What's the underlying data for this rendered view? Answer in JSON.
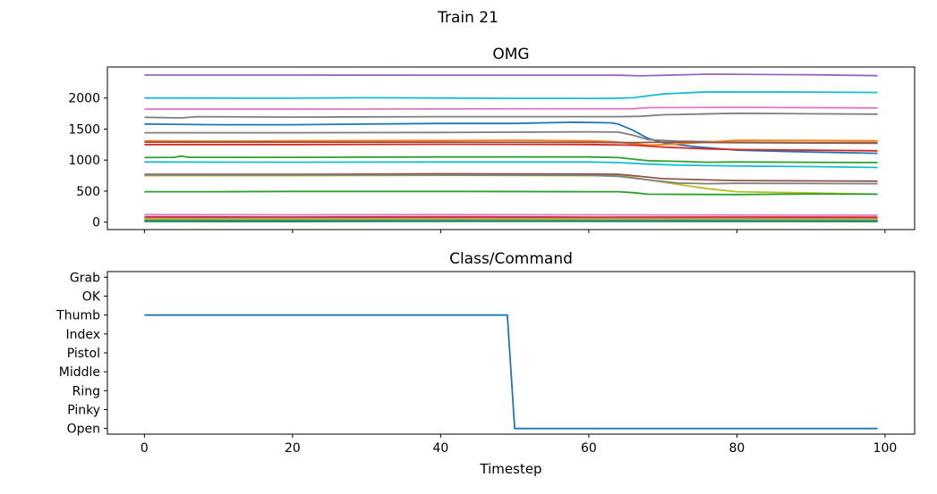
{
  "figure": {
    "title": "Train 21"
  },
  "chart_data": [
    {
      "type": "line",
      "title": "OMG",
      "xlabel": "",
      "ylabel": "",
      "xlim": [
        -5,
        104
      ],
      "ylim": [
        -120,
        2500
      ],
      "xticks": [
        0,
        20,
        40,
        60,
        80,
        100
      ],
      "xticklabels_visible": false,
      "yticks": [
        0,
        500,
        1000,
        1500,
        2000
      ],
      "grid": false,
      "legend": "none",
      "series": [
        {
          "color": "#9467bd",
          "values": [
            [
              0,
              2370
            ],
            [
              20,
              2370
            ],
            [
              40,
              2368
            ],
            [
              64,
              2368
            ],
            [
              67,
              2358
            ],
            [
              76,
              2385
            ],
            [
              90,
              2375
            ],
            [
              99,
              2360
            ]
          ]
        },
        {
          "color": "#17becf",
          "values": [
            [
              0,
              2000
            ],
            [
              20,
              1998
            ],
            [
              30,
              2005
            ],
            [
              50,
              1995
            ],
            [
              63,
              1993
            ],
            [
              66,
              2005
            ],
            [
              70,
              2065
            ],
            [
              76,
              2100
            ],
            [
              90,
              2095
            ],
            [
              99,
              2090
            ]
          ]
        },
        {
          "color": "#e377c2",
          "values": [
            [
              0,
              1820
            ],
            [
              20,
              1820
            ],
            [
              40,
              1825
            ],
            [
              66,
              1828
            ],
            [
              68,
              1845
            ],
            [
              80,
              1850
            ],
            [
              99,
              1840
            ]
          ]
        },
        {
          "color": "#7f7f7f",
          "values": [
            [
              0,
              1690
            ],
            [
              5,
              1680
            ],
            [
              7,
              1700
            ],
            [
              20,
              1692
            ],
            [
              40,
              1700
            ],
            [
              64,
              1700
            ],
            [
              67,
              1705
            ],
            [
              70,
              1730
            ],
            [
              80,
              1755
            ],
            [
              90,
              1745
            ],
            [
              99,
              1740
            ]
          ]
        },
        {
          "color": "#1f77b4",
          "values": [
            [
              0,
              1580
            ],
            [
              10,
              1570
            ],
            [
              20,
              1570
            ],
            [
              30,
              1580
            ],
            [
              40,
              1590
            ],
            [
              50,
              1590
            ],
            [
              58,
              1610
            ],
            [
              63,
              1600
            ],
            [
              64,
              1580
            ],
            [
              66,
              1480
            ],
            [
              68,
              1350
            ],
            [
              70,
              1280
            ],
            [
              74,
              1220
            ],
            [
              80,
              1160
            ],
            [
              90,
              1130
            ],
            [
              99,
              1110
            ]
          ]
        },
        {
          "color": "#7f7f7f",
          "values": [
            [
              0,
              1440
            ],
            [
              20,
              1440
            ],
            [
              40,
              1445
            ],
            [
              60,
              1455
            ],
            [
              64,
              1450
            ],
            [
              66,
              1400
            ],
            [
              68,
              1330
            ],
            [
              72,
              1305
            ],
            [
              80,
              1290
            ],
            [
              90,
              1280
            ],
            [
              99,
              1280
            ]
          ]
        },
        {
          "color": "#ff7f0e",
          "values": [
            [
              0,
              1310
            ],
            [
              10,
              1305
            ],
            [
              20,
              1310
            ],
            [
              40,
              1315
            ],
            [
              50,
              1320
            ],
            [
              60,
              1310
            ],
            [
              63,
              1300
            ],
            [
              66,
              1265
            ],
            [
              68,
              1240
            ],
            [
              72,
              1260
            ],
            [
              76,
              1290
            ],
            [
              80,
              1320
            ],
            [
              90,
              1315
            ],
            [
              99,
              1310
            ]
          ]
        },
        {
          "color": "#8c564b",
          "values": [
            [
              0,
              1290
            ],
            [
              40,
              1290
            ],
            [
              60,
              1285
            ],
            [
              66,
              1280
            ],
            [
              70,
              1290
            ],
            [
              80,
              1280
            ],
            [
              99,
              1270
            ]
          ]
        },
        {
          "color": "#d62728",
          "values": [
            [
              0,
              1250
            ],
            [
              20,
              1250
            ],
            [
              40,
              1255
            ],
            [
              60,
              1250
            ],
            [
              66,
              1240
            ],
            [
              70,
              1210
            ],
            [
              76,
              1180
            ],
            [
              80,
              1170
            ],
            [
              90,
              1160
            ],
            [
              99,
              1150
            ]
          ]
        },
        {
          "color": "#2ca02c",
          "values": [
            [
              0,
              1040
            ],
            [
              4,
              1045
            ],
            [
              5,
              1065
            ],
            [
              6,
              1045
            ],
            [
              20,
              1045
            ],
            [
              40,
              1050
            ],
            [
              60,
              1050
            ],
            [
              64,
              1040
            ],
            [
              68,
              990
            ],
            [
              72,
              980
            ],
            [
              76,
              965
            ],
            [
              80,
              970
            ],
            [
              99,
              960
            ]
          ]
        },
        {
          "color": "#17becf",
          "values": [
            [
              0,
              970
            ],
            [
              20,
              965
            ],
            [
              40,
              970
            ],
            [
              60,
              970
            ],
            [
              64,
              960
            ],
            [
              68,
              935
            ],
            [
              72,
              920
            ],
            [
              80,
              905
            ],
            [
              90,
              895
            ],
            [
              99,
              880
            ]
          ]
        },
        {
          "color": "#8c564b",
          "values": [
            [
              0,
              770
            ],
            [
              20,
              770
            ],
            [
              40,
              780
            ],
            [
              60,
              775
            ],
            [
              64,
              770
            ],
            [
              66,
              750
            ],
            [
              70,
              700
            ],
            [
              76,
              680
            ],
            [
              80,
              670
            ],
            [
              90,
              665
            ],
            [
              99,
              660
            ]
          ]
        },
        {
          "color": "#bcbd22",
          "values": [
            [
              0,
              750
            ],
            [
              20,
              750
            ],
            [
              40,
              755
            ],
            [
              60,
              750
            ],
            [
              64,
              745
            ],
            [
              66,
              720
            ],
            [
              68,
              680
            ],
            [
              72,
              610
            ],
            [
              76,
              540
            ],
            [
              80,
              490
            ],
            [
              90,
              470
            ],
            [
              99,
              450
            ]
          ]
        },
        {
          "color": "#7f7f7f",
          "values": [
            [
              0,
              760
            ],
            [
              40,
              760
            ],
            [
              60,
              755
            ],
            [
              64,
              740
            ],
            [
              68,
              680
            ],
            [
              72,
              630
            ],
            [
              76,
              620
            ],
            [
              80,
              625
            ],
            [
              99,
              620
            ]
          ]
        },
        {
          "color": "#2ca02c",
          "values": [
            [
              0,
              490
            ],
            [
              10,
              490
            ],
            [
              20,
              495
            ],
            [
              40,
              495
            ],
            [
              60,
              490
            ],
            [
              64,
              490
            ],
            [
              66,
              475
            ],
            [
              68,
              450
            ],
            [
              80,
              445
            ],
            [
              90,
              455
            ],
            [
              99,
              450
            ]
          ]
        },
        {
          "color": "#e377c2",
          "values": [
            [
              0,
              120
            ],
            [
              20,
              118
            ],
            [
              40,
              120
            ],
            [
              60,
              118
            ],
            [
              80,
              115
            ],
            [
              99,
              112
            ]
          ]
        },
        {
          "color": "#d62728",
          "values": [
            [
              0,
              85
            ],
            [
              20,
              82
            ],
            [
              40,
              85
            ],
            [
              60,
              80
            ],
            [
              80,
              82
            ],
            [
              99,
              80
            ]
          ]
        },
        {
          "color": "#9467bd",
          "values": [
            [
              0,
              60
            ],
            [
              30,
              62
            ],
            [
              60,
              58
            ],
            [
              99,
              55
            ]
          ]
        },
        {
          "color": "#ff7f0e",
          "values": [
            [
              0,
              40
            ],
            [
              30,
              38
            ],
            [
              60,
              42
            ],
            [
              99,
              38
            ]
          ]
        },
        {
          "color": "#8c564b",
          "values": [
            [
              0,
              22
            ],
            [
              40,
              20
            ],
            [
              99,
              22
            ]
          ]
        },
        {
          "color": "#2ca02c",
          "values": [
            [
              0,
              10
            ],
            [
              20,
              8
            ],
            [
              50,
              12
            ],
            [
              99,
              8
            ]
          ]
        },
        {
          "color": "#1f77b4",
          "values": [
            [
              0,
              30
            ],
            [
              40,
              28
            ],
            [
              99,
              26
            ]
          ]
        },
        {
          "color": "#bcbd22",
          "values": [
            [
              0,
              50
            ],
            [
              50,
              48
            ],
            [
              99,
              46
            ]
          ]
        }
      ]
    },
    {
      "type": "line",
      "title": "Class/Command",
      "xlabel": "Timestep",
      "ylabel": "",
      "xlim": [
        -5,
        104
      ],
      "ylim": [
        -0.3,
        8.3
      ],
      "xticks": [
        0,
        20,
        40,
        60,
        80,
        100
      ],
      "categories": [
        "Open",
        "Pinky",
        "Ring",
        "Middle",
        "Pistol",
        "Index",
        "Thumb",
        "OK",
        "Grab"
      ],
      "grid": false,
      "legend": "none",
      "series": [
        {
          "color": "#1f77b4",
          "values": [
            [
              0,
              6
            ],
            [
              49,
              6
            ],
            [
              50,
              0
            ],
            [
              99,
              0
            ]
          ]
        }
      ]
    }
  ]
}
